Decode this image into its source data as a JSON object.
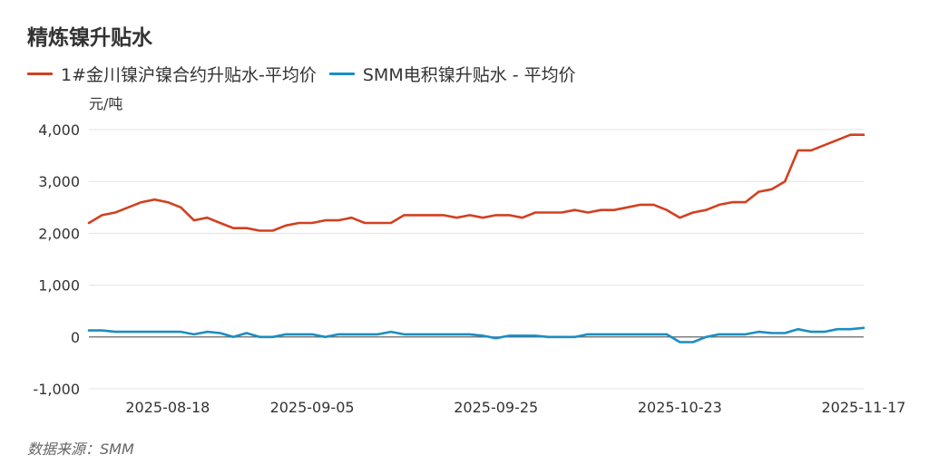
{
  "chart_data": {
    "type": "line",
    "title": "精炼镍升贴水",
    "ylabel": "元/吨",
    "xlabel": "",
    "source": "数据来源：SMM",
    "ylim": [
      -1000,
      4000
    ],
    "yticks": [
      -1000,
      0,
      1000,
      2000,
      3000,
      4000
    ],
    "ytick_labels": [
      "-1,000",
      "0",
      "1,000",
      "2,000",
      "3,000",
      "4,000"
    ],
    "xtick_labels": [
      {
        "label": "2025-08-18",
        "index": 6
      },
      {
        "label": "2025-09-05",
        "index": 17
      },
      {
        "label": "2025-09-25",
        "index": 31
      },
      {
        "label": "2025-10-23",
        "index": 45
      },
      {
        "label": "2025-11-17",
        "index": 59
      }
    ],
    "grid": true,
    "legend_position": "top-left",
    "series": [
      {
        "name": "1#金川镍沪镍合约升贴水-平均价",
        "color": "#D2401F",
        "values": [
          2200,
          2350,
          2400,
          2500,
          2600,
          2650,
          2600,
          2500,
          2250,
          2300,
          2200,
          2100,
          2100,
          2050,
          2050,
          2150,
          2200,
          2200,
          2250,
          2250,
          2300,
          2200,
          2200,
          2200,
          2350,
          2350,
          2350,
          2350,
          2300,
          2350,
          2300,
          2350,
          2350,
          2300,
          2400,
          2400,
          2400,
          2450,
          2400,
          2450,
          2450,
          2500,
          2550,
          2550,
          2450,
          2300,
          2400,
          2450,
          2550,
          2600,
          2600,
          2800,
          2850,
          3000,
          3600,
          3600,
          3700,
          3800,
          3900,
          3900
        ]
      },
      {
        "name": "SMM电积镍升贴水 - 平均价",
        "color": "#1B8DC1",
        "values": [
          125,
          125,
          100,
          100,
          100,
          100,
          100,
          100,
          50,
          100,
          75,
          0,
          75,
          0,
          0,
          50,
          50,
          50,
          0,
          50,
          50,
          50,
          50,
          100,
          50,
          50,
          50,
          50,
          50,
          50,
          25,
          -25,
          25,
          25,
          25,
          0,
          0,
          0,
          50,
          50,
          50,
          50,
          50,
          50,
          50,
          -100,
          -100,
          0,
          50,
          50,
          50,
          100,
          75,
          75,
          150,
          100,
          100,
          150,
          150,
          175
        ]
      }
    ]
  }
}
